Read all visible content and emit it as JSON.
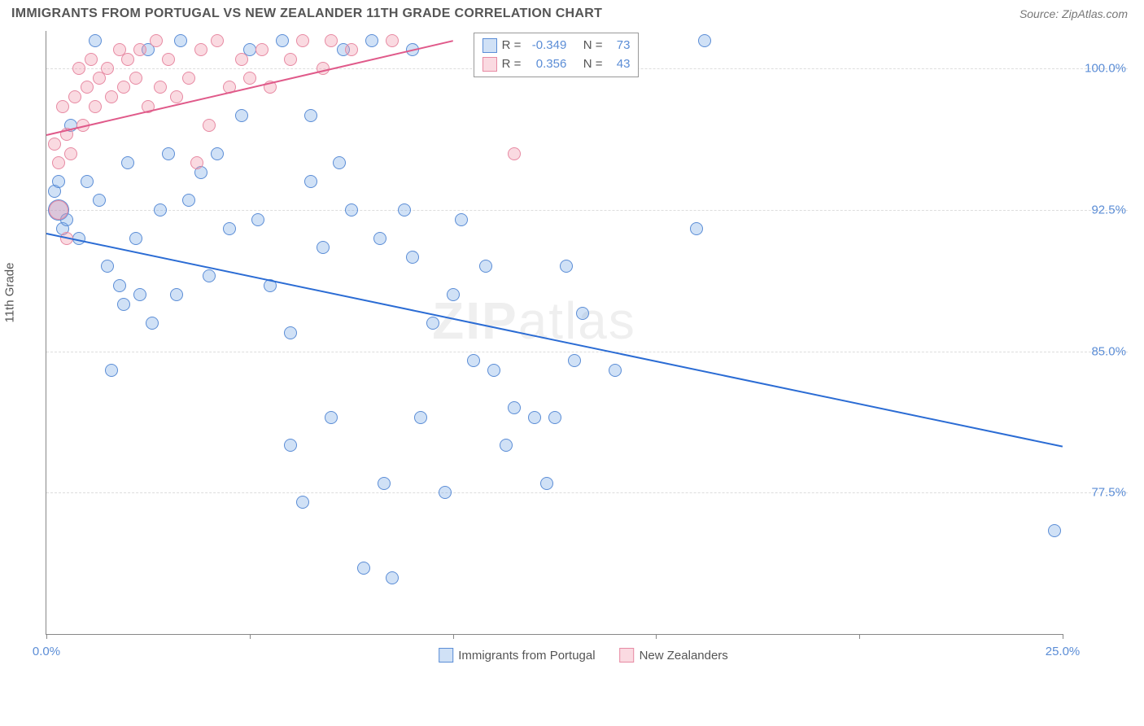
{
  "header": {
    "title": "IMMIGRANTS FROM PORTUGAL VS NEW ZEALANDER 11TH GRADE CORRELATION CHART",
    "source": "Source: ZipAtlas.com"
  },
  "chart": {
    "type": "scatter",
    "y_axis_label": "11th Grade",
    "watermark": "ZIPatlas",
    "background_color": "#ffffff",
    "grid_color": "#dddddd",
    "axis_color": "#888888",
    "tick_label_color": "#5b8dd6",
    "xlim": [
      0,
      25
    ],
    "ylim": [
      70,
      102
    ],
    "y_ticks": [
      {
        "value": 77.5,
        "label": "77.5%"
      },
      {
        "value": 85.0,
        "label": "85.0%"
      },
      {
        "value": 92.5,
        "label": "92.5%"
      },
      {
        "value": 100.0,
        "label": "100.0%"
      }
    ],
    "x_ticks": [
      {
        "value": 0,
        "label": "0.0%"
      },
      {
        "value": 5,
        "label": ""
      },
      {
        "value": 10,
        "label": ""
      },
      {
        "value": 15,
        "label": ""
      },
      {
        "value": 20,
        "label": ""
      },
      {
        "value": 25,
        "label": "25.0%"
      }
    ],
    "series": [
      {
        "name": "Immigrants from Portugal",
        "color_fill": "rgba(120,170,230,0.35)",
        "color_stroke": "#5b8dd6",
        "marker_size": 16,
        "trend": {
          "x1": 0,
          "y1": 91.3,
          "x2": 25,
          "y2": 80.0,
          "color": "#2b6cd4",
          "width": 2
        },
        "correlation": {
          "R": "-0.349",
          "N": "73"
        },
        "points": [
          {
            "x": 0.3,
            "y": 92.5,
            "size": 26
          },
          {
            "x": 0.2,
            "y": 93.5
          },
          {
            "x": 0.4,
            "y": 91.5
          },
          {
            "x": 0.5,
            "y": 92.0
          },
          {
            "x": 0.3,
            "y": 94.0
          },
          {
            "x": 0.6,
            "y": 97.0
          },
          {
            "x": 0.8,
            "y": 91.0
          },
          {
            "x": 1.0,
            "y": 94.0
          },
          {
            "x": 1.2,
            "y": 101.5
          },
          {
            "x": 1.3,
            "y": 93.0
          },
          {
            "x": 1.5,
            "y": 89.5
          },
          {
            "x": 1.6,
            "y": 84.0
          },
          {
            "x": 1.8,
            "y": 88.5
          },
          {
            "x": 1.9,
            "y": 87.5
          },
          {
            "x": 2.0,
            "y": 95.0
          },
          {
            "x": 2.2,
            "y": 91.0
          },
          {
            "x": 2.3,
            "y": 88.0
          },
          {
            "x": 2.5,
            "y": 101.0
          },
          {
            "x": 2.6,
            "y": 86.5
          },
          {
            "x": 2.8,
            "y": 92.5
          },
          {
            "x": 3.0,
            "y": 95.5
          },
          {
            "x": 3.2,
            "y": 88.0
          },
          {
            "x": 3.3,
            "y": 101.5
          },
          {
            "x": 3.5,
            "y": 93.0
          },
          {
            "x": 3.8,
            "y": 94.5
          },
          {
            "x": 4.0,
            "y": 89.0
          },
          {
            "x": 4.2,
            "y": 95.5
          },
          {
            "x": 4.5,
            "y": 91.5
          },
          {
            "x": 4.8,
            "y": 97.5
          },
          {
            "x": 5.0,
            "y": 101.0
          },
          {
            "x": 5.2,
            "y": 92.0
          },
          {
            "x": 5.5,
            "y": 88.5
          },
          {
            "x": 5.8,
            "y": 101.5
          },
          {
            "x": 6.0,
            "y": 86.0
          },
          {
            "x": 6.0,
            "y": 80.0
          },
          {
            "x": 6.3,
            "y": 77.0
          },
          {
            "x": 6.5,
            "y": 97.5
          },
          {
            "x": 6.5,
            "y": 94.0
          },
          {
            "x": 6.8,
            "y": 90.5
          },
          {
            "x": 7.0,
            "y": 81.5
          },
          {
            "x": 7.2,
            "y": 95.0
          },
          {
            "x": 7.3,
            "y": 101.0
          },
          {
            "x": 7.5,
            "y": 92.5
          },
          {
            "x": 7.8,
            "y": 73.5
          },
          {
            "x": 8.0,
            "y": 101.5
          },
          {
            "x": 8.2,
            "y": 91.0
          },
          {
            "x": 8.3,
            "y": 78.0
          },
          {
            "x": 8.5,
            "y": 73.0
          },
          {
            "x": 8.8,
            "y": 92.5
          },
          {
            "x": 9.0,
            "y": 90.0
          },
          {
            "x": 9.0,
            "y": 101.0
          },
          {
            "x": 9.2,
            "y": 81.5
          },
          {
            "x": 9.5,
            "y": 86.5
          },
          {
            "x": 9.8,
            "y": 77.5
          },
          {
            "x": 10.0,
            "y": 88.0
          },
          {
            "x": 10.2,
            "y": 92.0
          },
          {
            "x": 10.5,
            "y": 84.5
          },
          {
            "x": 10.8,
            "y": 89.5
          },
          {
            "x": 11.0,
            "y": 84.0
          },
          {
            "x": 11.3,
            "y": 80.0
          },
          {
            "x": 11.5,
            "y": 82.0
          },
          {
            "x": 12.0,
            "y": 81.5
          },
          {
            "x": 12.3,
            "y": 78.0
          },
          {
            "x": 12.5,
            "y": 81.5
          },
          {
            "x": 12.8,
            "y": 89.5
          },
          {
            "x": 13.0,
            "y": 84.5
          },
          {
            "x": 13.2,
            "y": 87.0
          },
          {
            "x": 13.5,
            "y": 101.0
          },
          {
            "x": 14.0,
            "y": 84.0
          },
          {
            "x": 14.3,
            "y": 101.5
          },
          {
            "x": 16.0,
            "y": 91.5
          },
          {
            "x": 16.2,
            "y": 101.5
          },
          {
            "x": 24.8,
            "y": 75.5
          }
        ]
      },
      {
        "name": "New Zealanders",
        "color_fill": "rgba(240,150,170,0.35)",
        "color_stroke": "#e78aa3",
        "marker_size": 16,
        "trend": {
          "x1": 0,
          "y1": 96.5,
          "x2": 10,
          "y2": 101.5,
          "color": "#e05a8a",
          "width": 2
        },
        "correlation": {
          "R": "0.356",
          "N": "43"
        },
        "points": [
          {
            "x": 0.2,
            "y": 96.0
          },
          {
            "x": 0.3,
            "y": 95.0
          },
          {
            "x": 0.4,
            "y": 98.0
          },
          {
            "x": 0.5,
            "y": 96.5
          },
          {
            "x": 0.6,
            "y": 95.5
          },
          {
            "x": 0.7,
            "y": 98.5
          },
          {
            "x": 0.8,
            "y": 100.0
          },
          {
            "x": 0.9,
            "y": 97.0
          },
          {
            "x": 1.0,
            "y": 99.0
          },
          {
            "x": 1.1,
            "y": 100.5
          },
          {
            "x": 1.2,
            "y": 98.0
          },
          {
            "x": 1.3,
            "y": 99.5
          },
          {
            "x": 1.5,
            "y": 100.0
          },
          {
            "x": 1.6,
            "y": 98.5
          },
          {
            "x": 1.8,
            "y": 101.0
          },
          {
            "x": 1.9,
            "y": 99.0
          },
          {
            "x": 2.0,
            "y": 100.5
          },
          {
            "x": 2.2,
            "y": 99.5
          },
          {
            "x": 2.3,
            "y": 101.0
          },
          {
            "x": 2.5,
            "y": 98.0
          },
          {
            "x": 2.7,
            "y": 101.5
          },
          {
            "x": 2.8,
            "y": 99.0
          },
          {
            "x": 3.0,
            "y": 100.5
          },
          {
            "x": 3.2,
            "y": 98.5
          },
          {
            "x": 3.5,
            "y": 99.5
          },
          {
            "x": 3.7,
            "y": 95.0
          },
          {
            "x": 3.8,
            "y": 101.0
          },
          {
            "x": 4.0,
            "y": 97.0
          },
          {
            "x": 4.2,
            "y": 101.5
          },
          {
            "x": 4.5,
            "y": 99.0
          },
          {
            "x": 4.8,
            "y": 100.5
          },
          {
            "x": 5.0,
            "y": 99.5
          },
          {
            "x": 5.3,
            "y": 101.0
          },
          {
            "x": 5.5,
            "y": 99.0
          },
          {
            "x": 6.0,
            "y": 100.5
          },
          {
            "x": 6.3,
            "y": 101.5
          },
          {
            "x": 6.8,
            "y": 100.0
          },
          {
            "x": 7.0,
            "y": 101.5
          },
          {
            "x": 7.5,
            "y": 101.0
          },
          {
            "x": 8.5,
            "y": 101.5
          },
          {
            "x": 11.5,
            "y": 95.5
          },
          {
            "x": 0.5,
            "y": 91.0
          },
          {
            "x": 0.3,
            "y": 92.5,
            "size": 24
          }
        ]
      }
    ],
    "stat_legend": {
      "rows": [
        {
          "swatch_fill": "rgba(120,170,230,0.35)",
          "swatch_stroke": "#5b8dd6",
          "r_label": "R =",
          "r_value": "-0.349",
          "n_label": "N =",
          "n_value": "73"
        },
        {
          "swatch_fill": "rgba(240,150,170,0.35)",
          "swatch_stroke": "#e78aa3",
          "r_label": "R =",
          "r_value": "0.356",
          "n_label": "N =",
          "n_value": "43"
        }
      ]
    },
    "bottom_legend": [
      {
        "swatch_fill": "rgba(120,170,230,0.35)",
        "swatch_stroke": "#5b8dd6",
        "label": "Immigrants from Portugal"
      },
      {
        "swatch_fill": "rgba(240,150,170,0.35)",
        "swatch_stroke": "#e78aa3",
        "label": "New Zealanders"
      }
    ]
  }
}
